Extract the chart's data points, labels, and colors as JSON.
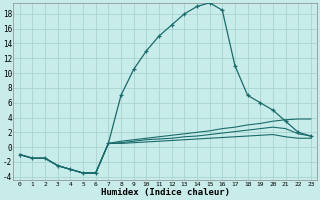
{
  "xlabel": "Humidex (Indice chaleur)",
  "xlim": [
    -0.5,
    23.5
  ],
  "ylim": [
    -4.5,
    19.5
  ],
  "yticks": [
    -4,
    -2,
    0,
    2,
    4,
    6,
    8,
    10,
    12,
    14,
    16,
    18
  ],
  "xticks": [
    0,
    1,
    2,
    3,
    4,
    5,
    6,
    7,
    8,
    9,
    10,
    11,
    12,
    13,
    14,
    15,
    16,
    17,
    18,
    19,
    20,
    21,
    22,
    23
  ],
  "bg_color": "#c8ecea",
  "grid_color": "#a8d4d0",
  "line_color": "#1a6b6b",
  "main_series": [
    -1,
    -1.5,
    -1.5,
    -2.5,
    -3,
    -3.5,
    -3.5,
    0.5,
    7,
    10.5,
    13,
    15,
    16.5,
    18,
    19,
    19.5,
    18.5,
    11,
    7,
    6,
    5,
    3.5,
    2,
    1.5
  ],
  "line2": [
    -1,
    -1.5,
    -1.5,
    -2.5,
    -3,
    -3.5,
    -3.5,
    0.5,
    0.8,
    1.0,
    1.2,
    1.4,
    1.6,
    1.8,
    2.0,
    2.2,
    2.5,
    2.7,
    3.0,
    3.2,
    3.5,
    3.7,
    3.8,
    3.8
  ],
  "line3": [
    -1,
    -1.5,
    -1.5,
    -2.5,
    -3,
    -3.5,
    -3.5,
    0.5,
    0.6,
    0.8,
    1.0,
    1.1,
    1.2,
    1.4,
    1.5,
    1.7,
    1.9,
    2.1,
    2.3,
    2.5,
    2.7,
    2.5,
    1.8,
    1.5
  ],
  "line4": [
    -1,
    -1.5,
    -1.5,
    -2.5,
    -3,
    -3.5,
    -3.5,
    0.5,
    0.5,
    0.6,
    0.7,
    0.8,
    0.9,
    1.0,
    1.1,
    1.2,
    1.3,
    1.4,
    1.5,
    1.6,
    1.7,
    1.4,
    1.2,
    1.2
  ]
}
